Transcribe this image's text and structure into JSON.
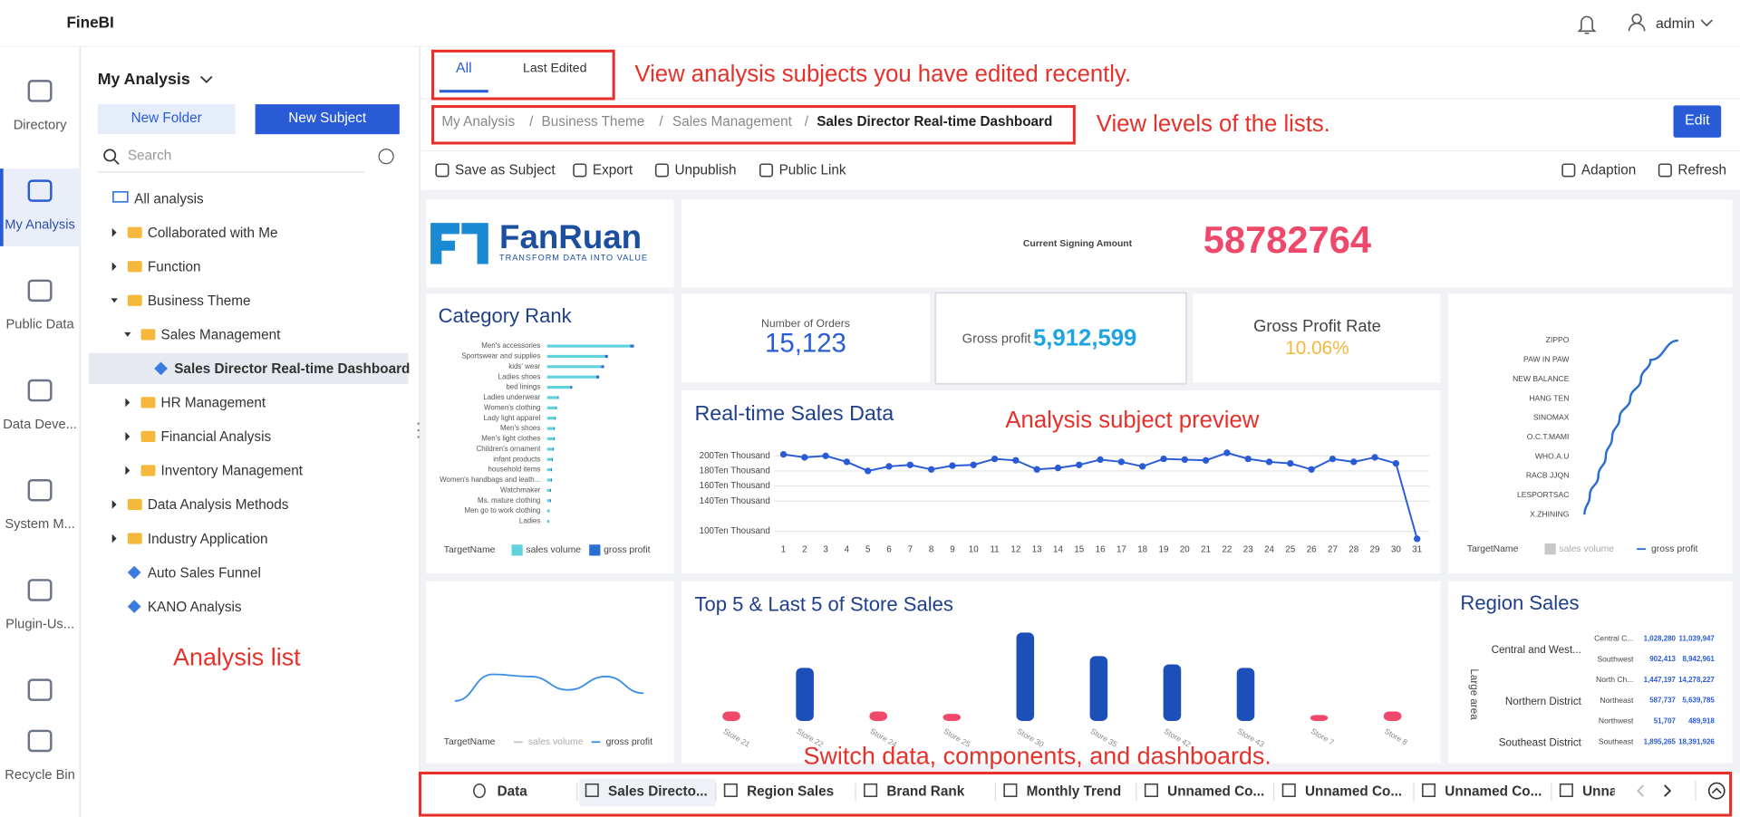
{
  "header": {
    "logo": "FineBI",
    "user": "admin"
  },
  "nav": {
    "items": [
      "Directory",
      "My Analysis",
      "Public Data",
      "Data Deve...",
      "System M...",
      "Plugin-Us...",
      "Recycle Bin"
    ],
    "selected": 1
  },
  "sidebar": {
    "title": "My Analysis",
    "buttons": [
      "New Folder",
      "New Subject"
    ],
    "search": "Search",
    "tree": {
      "label": "All analysis",
      "children": [
        {
          "label": "Collaborated with Me",
          "kind": "folder"
        },
        {
          "label": "Function",
          "kind": "folder"
        },
        {
          "label": "Business Theme",
          "kind": "folder",
          "children": [
            {
              "label": "Sales Management",
              "kind": "folder",
              "children": [
                {
                  "label": "Sales Director Real-time Dashboard",
                  "kind": "subject",
                  "selected": true
                }
              ]
            },
            {
              "label": "HR Management",
              "kind": "folder"
            },
            {
              "label": "Financial Analysis",
              "kind": "folder"
            },
            {
              "label": "Inventory Management",
              "kind": "folder"
            }
          ]
        },
        {
          "label": "Data Analysis Methods",
          "kind": "folder"
        },
        {
          "label": "Industry Application",
          "kind": "folder"
        },
        {
          "label": "Auto Sales Funnel",
          "kind": "subject"
        },
        {
          "label": "KANO Analysis",
          "kind": "subject"
        }
      ]
    },
    "annotation": "Analysis list"
  },
  "tabs": {
    "items": [
      "All",
      "Last Edited"
    ],
    "selected": 0,
    "annotation": "View analysis subjects you have edited recently."
  },
  "breadcrumb": {
    "items": [
      "My Analysis",
      "Business Theme",
      "Sales Management",
      "Sales Director Real-time Dashboard"
    ],
    "separator": "/",
    "annotation": "View levels of the lists.",
    "button": "Edit"
  },
  "toolbar": {
    "left": [
      "Save as Subject",
      "Export",
      "Unpublish",
      "Public Link"
    ],
    "right": [
      "Adaption",
      "Refresh"
    ]
  },
  "dashboard": {
    "logo": {
      "name": "FanRuan",
      "slogan": "TRANSFORM DATA INTO VALUE"
    },
    "signing": {
      "label": "Current Signing Amount",
      "value": "58782764"
    },
    "orders": {
      "label": "Number of Orders",
      "value": "15,123"
    },
    "profit": {
      "label": "Gross profit",
      "value": "5,912,599"
    },
    "rate": {
      "label": "Gross Profit Rate",
      "value": "10.06%"
    },
    "annotation": "Analysis subject preview"
  },
  "chart_data": [
    {
      "type": "bar",
      "orientation": "horizontal",
      "stacked": true,
      "title": "Category Rank",
      "categories": [
        "Men's accessories",
        "Sportswear and supplies",
        "kids' wear",
        "Ladies shoes",
        "bed linings",
        "Ladies underwear",
        "Women's clothing",
        "Lady light apparel",
        "Men's shoes",
        "Men's light clothes",
        "Children's ornament",
        "infant products",
        "household items",
        "Women's handbags and leath...",
        "Watchmaker",
        "Ms. mature clothing",
        "Men go to work clothing",
        "Ladies"
      ],
      "legend_title": "TargetName",
      "xlim": [
        0,
        100
      ],
      "series": [
        {
          "name": "sales volume",
          "color": "#5fd3dc",
          "values": [
            86,
            60,
            56,
            51,
            24,
            11,
            9,
            8,
            7,
            7,
            6,
            5,
            4,
            4,
            3,
            3,
            2,
            1.5
          ]
        },
        {
          "name": "gross profit",
          "color": "#2a6fd0",
          "values": [
            4,
            3,
            3,
            3,
            2,
            1,
            1,
            1,
            1,
            1,
            1,
            1,
            1,
            1,
            1,
            1,
            0.5,
            0.5
          ]
        }
      ]
    },
    {
      "type": "line",
      "title": "Real-time Sales Data",
      "categories": [
        "1",
        "2",
        "3",
        "4",
        "5",
        "6",
        "7",
        "8",
        "9",
        "10",
        "11",
        "12",
        "13",
        "14",
        "15",
        "16",
        "17",
        "18",
        "19",
        "20",
        "21",
        "22",
        "23",
        "24",
        "25",
        "26",
        "27",
        "28",
        "29",
        "30",
        "31"
      ],
      "ylim": [
        90,
        210
      ],
      "yticks": [
        {
          "value": 100,
          "label": "100Ten Thousand"
        },
        {
          "value": 140,
          "label": "140Ten Thousand"
        },
        {
          "value": 160,
          "label": "160Ten Thousand"
        },
        {
          "value": 180,
          "label": "180Ten Thousand"
        },
        {
          "value": 200,
          "label": "200Ten Thousand"
        }
      ],
      "grid": true,
      "series": [
        {
          "name": "sales",
          "color": "#2a5bd7",
          "values": [
            202,
            198,
            200,
            192,
            180,
            186,
            188,
            182,
            187,
            188,
            196,
            194,
            182,
            184,
            188,
            195,
            192,
            186,
            196,
            195,
            194,
            204,
            196,
            192,
            190,
            182,
            196,
            192,
            198,
            190,
            90
          ]
        }
      ]
    },
    {
      "type": "line",
      "orientation": "horizontal",
      "categories": [
        "ZIPPO",
        "PAW IN PAW",
        "NEW BALANCE",
        "HANG TEN",
        "SINOMAX",
        "O.C.T.MAMI",
        "WHO.A.U",
        "RACB JJQN",
        "LESPORTSAC",
        "X.ZHINING"
      ],
      "xlim": [
        0,
        100
      ],
      "legend_title": "TargetName",
      "series": [
        {
          "name": "sales volume",
          "color": "#c8c8c8",
          "values": [
            null,
            null,
            null,
            null,
            null,
            null,
            null,
            null,
            null,
            null
          ]
        },
        {
          "name": "gross profit",
          "color": "#2a6fd0",
          "values": [
            92,
            66,
            57,
            47,
            37,
            30,
            24,
            17,
            9,
            4
          ]
        }
      ]
    },
    {
      "type": "line",
      "ylim": [
        0,
        40
      ],
      "legend_title": "TargetName",
      "series": [
        {
          "name": "sales volume",
          "color": "#c8c8c8",
          "values": [
            null,
            null,
            null,
            null,
            null,
            null
          ]
        },
        {
          "name": "gross profit",
          "color": "#3a8ee6",
          "values": [
            8,
            32,
            30,
            18,
            30,
            15
          ]
        }
      ]
    },
    {
      "type": "bar",
      "title": "Top 5 & Last 5 of Store Sales",
      "categories": [
        "Store 21",
        "Store 22",
        "Store 24",
        "Store 25",
        "Store 30",
        "Store 35",
        "Store 42",
        "Store 43",
        "Store 7",
        "Store 8"
      ],
      "ylim": [
        0,
        80
      ],
      "values": [
        8,
        45,
        8,
        6,
        75,
        55,
        48,
        45,
        5,
        8
      ],
      "colors": [
        "#f0486a",
        "#1d4fb8",
        "#f0486a",
        "#f0486a",
        "#1d4fb8",
        "#1d4fb8",
        "#1d4fb8",
        "#1d4fb8",
        "#f0486a",
        "#f0486a"
      ]
    }
  ],
  "region_sales": {
    "title": "Region Sales",
    "axis_label": "Large area",
    "groups": [
      {
        "name": "Central and West...",
        "rows": [
          [
            "Central C...",
            "1,028,280",
            "11,039,947"
          ],
          [
            "Southwest",
            "902,413",
            "8,942,961"
          ]
        ]
      },
      {
        "name": "Northern District",
        "rows": [
          [
            "North Ch...",
            "1,447,197",
            "14,278,227"
          ],
          [
            "Northeast",
            "587,737",
            "5,639,785"
          ],
          [
            "Northwest",
            "51,707",
            "489,918"
          ]
        ]
      },
      {
        "name": "Southeast District",
        "rows": [
          [
            "Southeast",
            "1,895,265",
            "18,391,926"
          ]
        ]
      }
    ]
  },
  "bottom_tabs": {
    "items": [
      "Data",
      "Sales Directo...",
      "Region Sales",
      "Brand Rank",
      "Monthly Trend",
      "Unnamed Co...",
      "Unnamed Co...",
      "Unnamed Co...",
      "Unna"
    ],
    "selected": 1,
    "annotation": "Switch data, components, and dashboards."
  }
}
